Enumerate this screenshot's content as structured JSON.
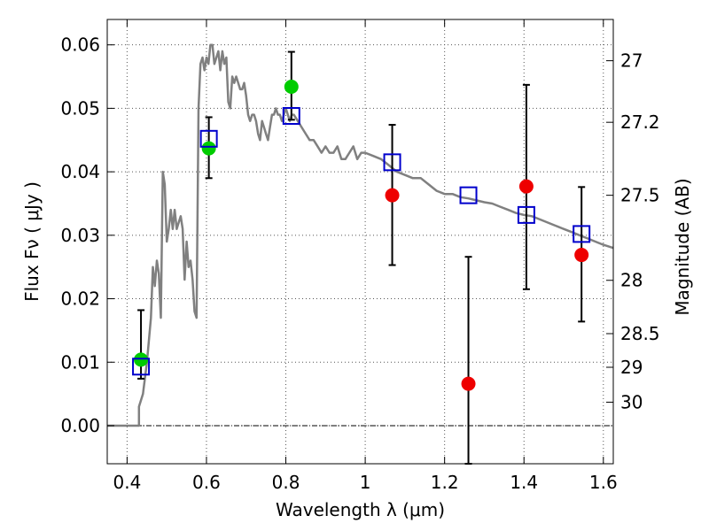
{
  "chart_data": {
    "type": "scatter",
    "xlabel": "Wavelength  λ (μm)",
    "ylabel": "Flux  Fν  ( μJy )",
    "y2label": "Magnitude (AB)",
    "xlim": [
      0.35,
      1.625
    ],
    "ylim": [
      -0.006,
      0.064
    ],
    "grid": true,
    "x_ticks": [
      0.4,
      0.6,
      0.8,
      1.0,
      1.2,
      1.4,
      1.6
    ],
    "x_tick_labels": [
      "0.4",
      "0.6",
      "0.8",
      "1",
      "1.2",
      "1.4",
      "1.6"
    ],
    "y_ticks": [
      0.0,
      0.01,
      0.02,
      0.03,
      0.04,
      0.05,
      0.06
    ],
    "y_tick_labels": [
      "0.00",
      "0.01",
      "0.02",
      "0.03",
      "0.04",
      "0.05",
      "0.06"
    ],
    "y2_ticks": [
      {
        "flux": 0.0575,
        "label": "27"
      },
      {
        "flux": 0.0478,
        "label": "27.2"
      },
      {
        "flux": 0.0363,
        "label": "27.5"
      },
      {
        "flux": 0.0229,
        "label": "28"
      },
      {
        "flux": 0.0145,
        "label": "28.5"
      },
      {
        "flux": 0.0092,
        "label": "29"
      },
      {
        "flux": 0.0037,
        "label": "30"
      }
    ],
    "colors": {
      "model": "#808080",
      "green_points": "#00cc00",
      "red_points": "#ee0000",
      "model_boxes": "#0000cc",
      "error_bars": "#000000",
      "grid": "#555555"
    },
    "model_sed": {
      "x": [
        0.35,
        0.43,
        0.43,
        0.44,
        0.45,
        0.46,
        0.465,
        0.47,
        0.475,
        0.48,
        0.485,
        0.49,
        0.495,
        0.5,
        0.505,
        0.51,
        0.515,
        0.52,
        0.525,
        0.53,
        0.535,
        0.54,
        0.545,
        0.55,
        0.555,
        0.56,
        0.565,
        0.57,
        0.575,
        0.58,
        0.585,
        0.59,
        0.595,
        0.6,
        0.605,
        0.61,
        0.615,
        0.62,
        0.625,
        0.63,
        0.635,
        0.64,
        0.645,
        0.65,
        0.655,
        0.66,
        0.665,
        0.67,
        0.675,
        0.68,
        0.685,
        0.69,
        0.695,
        0.7,
        0.705,
        0.71,
        0.715,
        0.72,
        0.725,
        0.73,
        0.735,
        0.74,
        0.745,
        0.75,
        0.755,
        0.76,
        0.765,
        0.77,
        0.775,
        0.78,
        0.785,
        0.79,
        0.795,
        0.8,
        0.805,
        0.81,
        0.815,
        0.82,
        0.83,
        0.84,
        0.85,
        0.86,
        0.87,
        0.88,
        0.89,
        0.9,
        0.91,
        0.92,
        0.93,
        0.94,
        0.95,
        0.96,
        0.97,
        0.98,
        0.99,
        1.0,
        1.02,
        1.04,
        1.06,
        1.08,
        1.1,
        1.12,
        1.14,
        1.16,
        1.18,
        1.2,
        1.22,
        1.24,
        1.26,
        1.28,
        1.3,
        1.32,
        1.34,
        1.36,
        1.38,
        1.4,
        1.42,
        1.44,
        1.46,
        1.48,
        1.5,
        1.52,
        1.54,
        1.56,
        1.58,
        1.6,
        1.625
      ],
      "y": [
        0.0,
        0.0,
        0.003,
        0.005,
        0.01,
        0.017,
        0.025,
        0.022,
        0.026,
        0.024,
        0.017,
        0.04,
        0.038,
        0.029,
        0.031,
        0.034,
        0.031,
        0.034,
        0.031,
        0.032,
        0.033,
        0.031,
        0.023,
        0.029,
        0.025,
        0.026,
        0.023,
        0.018,
        0.017,
        0.05,
        0.057,
        0.058,
        0.056,
        0.058,
        0.057,
        0.06,
        0.06,
        0.057,
        0.058,
        0.059,
        0.056,
        0.059,
        0.057,
        0.058,
        0.051,
        0.05,
        0.055,
        0.054,
        0.055,
        0.054,
        0.053,
        0.053,
        0.054,
        0.052,
        0.049,
        0.048,
        0.049,
        0.049,
        0.048,
        0.046,
        0.045,
        0.048,
        0.047,
        0.046,
        0.045,
        0.047,
        0.049,
        0.049,
        0.05,
        0.049,
        0.049,
        0.048,
        0.049,
        0.05,
        0.049,
        0.048,
        0.049,
        0.049,
        0.048,
        0.047,
        0.046,
        0.045,
        0.045,
        0.044,
        0.043,
        0.044,
        0.043,
        0.043,
        0.044,
        0.042,
        0.042,
        0.043,
        0.044,
        0.042,
        0.043,
        0.043,
        0.0425,
        0.042,
        0.041,
        0.04,
        0.0395,
        0.039,
        0.039,
        0.038,
        0.037,
        0.0365,
        0.0365,
        0.036,
        0.0358,
        0.0355,
        0.0352,
        0.035,
        0.0345,
        0.034,
        0.0335,
        0.0332,
        0.033,
        0.0325,
        0.032,
        0.0315,
        0.031,
        0.0305,
        0.03,
        0.0295,
        0.029,
        0.0285,
        0.028
      ]
    },
    "series": [
      {
        "marker": "circle",
        "color": "green",
        "points": [
          {
            "x": 0.435,
            "y": 0.0104,
            "err_low": 0.0074,
            "err_high": 0.0182
          },
          {
            "x": 0.606,
            "y": 0.0437,
            "err_low": 0.039,
            "err_high": 0.0486
          },
          {
            "x": 0.814,
            "y": 0.0534,
            "err_low": 0.0482,
            "err_high": 0.0589
          }
        ]
      },
      {
        "marker": "circle",
        "color": "red",
        "points": [
          {
            "x": 1.068,
            "y": 0.0363,
            "err_low": 0.0253,
            "err_high": 0.0474
          },
          {
            "x": 1.26,
            "y": 0.0066,
            "err_low": -0.006,
            "err_high": 0.0266
          },
          {
            "x": 1.406,
            "y": 0.0377,
            "err_low": 0.0215,
            "err_high": 0.0537
          },
          {
            "x": 1.545,
            "y": 0.0269,
            "err_low": 0.0164,
            "err_high": 0.0376
          }
        ]
      },
      {
        "marker": "open-square",
        "color": "blue",
        "points": [
          {
            "x": 0.435,
            "y": 0.0093
          },
          {
            "x": 0.606,
            "y": 0.0452
          },
          {
            "x": 0.814,
            "y": 0.0488
          },
          {
            "x": 1.068,
            "y": 0.0415
          },
          {
            "x": 1.26,
            "y": 0.0363
          },
          {
            "x": 1.406,
            "y": 0.0332
          },
          {
            "x": 1.545,
            "y": 0.0302
          }
        ]
      }
    ]
  }
}
